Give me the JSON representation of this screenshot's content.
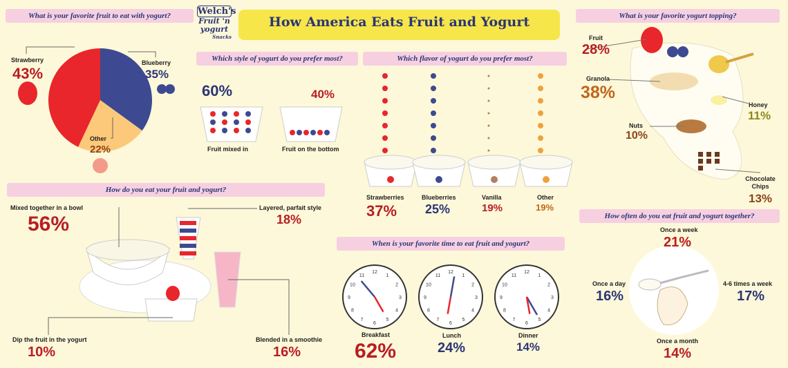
{
  "logo": {
    "brand": "Welch's",
    "product": "Fruit 'n yogurt",
    "sub": "Snacks"
  },
  "title": "How America Eats Fruit and Yogurt",
  "colors": {
    "strawberry": "#e8262b",
    "blueberry": "#3d4a91",
    "other": "#fcc97a",
    "header_bar": "#f6d0e1",
    "title_bar": "#f6e64a"
  },
  "favorite_fruit": {
    "question": "What is your favorite fruit to eat with yogurt?",
    "items": [
      {
        "label": "Strawberry",
        "pct": "43%"
      },
      {
        "label": "Blueberry",
        "pct": "35%"
      },
      {
        "label": "Other",
        "pct": "22%"
      }
    ]
  },
  "style": {
    "question": "Which style of yogurt do you prefer most?",
    "items": [
      {
        "label": "Fruit mixed in",
        "pct": "60%"
      },
      {
        "label": "Fruit on the bottom",
        "pct": "40%"
      }
    ]
  },
  "flavor": {
    "question": "Which flavor of yogurt do you prefer most?",
    "items": [
      {
        "label": "Strawberries",
        "pct": "37%"
      },
      {
        "label": "Blueberries",
        "pct": "25%"
      },
      {
        "label": "Vanilla",
        "pct": "19%"
      },
      {
        "label": "Other",
        "pct": "19%"
      }
    ]
  },
  "topping": {
    "question": "What is your favorite yogurt topping?",
    "items": [
      {
        "label": "Fruit",
        "pct": "28%"
      },
      {
        "label": "Granola",
        "pct": "38%"
      },
      {
        "label": "Honey",
        "pct": "11%"
      },
      {
        "label": "Nuts",
        "pct": "10%"
      },
      {
        "label": "Chocolate Chips",
        "pct": "13%"
      }
    ]
  },
  "how_eat": {
    "question": "How do you eat your fruit and yogurt?",
    "items": [
      {
        "label": "Mixed together in a bowl",
        "pct": "56%"
      },
      {
        "label": "Layered, parfait style",
        "pct": "18%"
      },
      {
        "label": "Dip the fruit in the yogurt",
        "pct": "10%"
      },
      {
        "label": "Blended in a smoothie",
        "pct": "16%"
      }
    ]
  },
  "when": {
    "question": "When is your favorite time to eat fruit and yogurt?",
    "items": [
      {
        "label": "Breakfast",
        "pct": "62%"
      },
      {
        "label": "Lunch",
        "pct": "24%"
      },
      {
        "label": "Dinner",
        "pct": "14%"
      }
    ]
  },
  "how_often": {
    "question": "How often do you eat fruit and yogurt together?",
    "items": [
      {
        "label": "Once a week",
        "pct": "21%"
      },
      {
        "label": "Once a day",
        "pct": "16%"
      },
      {
        "label": "4-6 times a week",
        "pct": "17%"
      },
      {
        "label": "Once a month",
        "pct": "14%"
      }
    ]
  },
  "chart_data": {
    "type": "pie",
    "title": "What is your favorite fruit to eat with yogurt?",
    "categories": [
      "Strawberry",
      "Blueberry",
      "Other"
    ],
    "values": [
      43,
      35,
      22
    ]
  }
}
